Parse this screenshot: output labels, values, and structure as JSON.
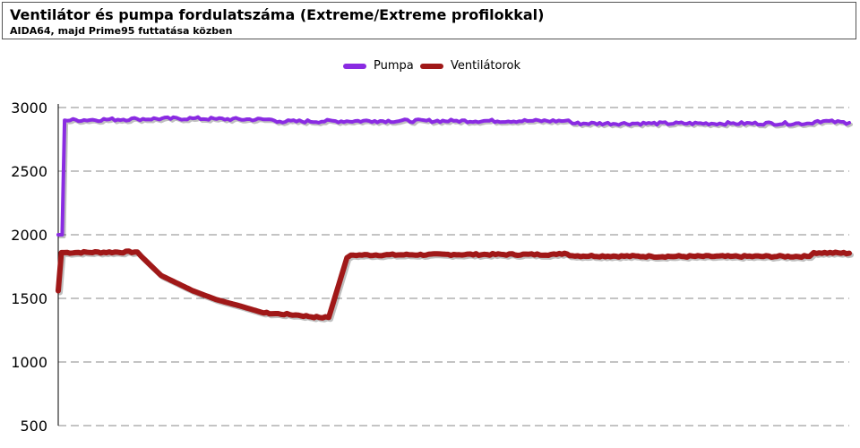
{
  "header": {
    "title": "Ventilátor és pumpa fordulatszáma (Extreme/Extreme profilokkal)",
    "subtitle": "AIDA64, majd Prime95 futtatása közben"
  },
  "colors": {
    "pumpa": "#8a2be2",
    "ventilatorok": "#a01818",
    "grid": "#888888",
    "axis": "#000000"
  },
  "chart_data": {
    "type": "line",
    "title": "Ventilátor és pumpa fordulatszáma (Extreme/Extreme profilokkal)",
    "subtitle": "AIDA64, majd Prime95 futtatása közben",
    "xlabel": "",
    "ylabel": "",
    "ylim": [
      500,
      3000
    ],
    "yticks": [
      "500",
      "1000",
      "1500",
      "2000",
      "2500",
      "3000"
    ],
    "grid": true,
    "legend": "top-center",
    "x_range": [
      0,
      100
    ],
    "series": [
      {
        "name": "Pumpa",
        "color": "#8a2be2",
        "points": [
          [
            0,
            2000
          ],
          [
            0.5,
            2000
          ],
          [
            0.8,
            2900
          ],
          [
            10,
            2910
          ],
          [
            17,
            2915
          ],
          [
            20,
            2910
          ],
          [
            27,
            2905
          ],
          [
            28,
            2890
          ],
          [
            40,
            2895
          ],
          [
            50,
            2895
          ],
          [
            60,
            2895
          ],
          [
            64,
            2895
          ],
          [
            64.5,
            2900
          ],
          [
            65,
            2875
          ],
          [
            75,
            2875
          ],
          [
            85,
            2875
          ],
          [
            95,
            2875
          ],
          [
            96,
            2895
          ],
          [
            100,
            2880
          ]
        ]
      },
      {
        "name": "Ventilátorok",
        "color": "#a01818",
        "points": [
          [
            0,
            1560
          ],
          [
            0.4,
            1860
          ],
          [
            10,
            1865
          ],
          [
            10.5,
            1830
          ],
          [
            13,
            1680
          ],
          [
            17,
            1560
          ],
          [
            20,
            1490
          ],
          [
            23,
            1440
          ],
          [
            26,
            1385
          ],
          [
            30,
            1370
          ],
          [
            33,
            1350
          ],
          [
            34.2,
            1350
          ],
          [
            36.5,
            1820
          ],
          [
            37,
            1840
          ],
          [
            50,
            1845
          ],
          [
            63,
            1845
          ],
          [
            64,
            1855
          ],
          [
            65,
            1835
          ],
          [
            75,
            1830
          ],
          [
            85,
            1830
          ],
          [
            95,
            1830
          ],
          [
            95.5,
            1860
          ],
          [
            100,
            1855
          ]
        ]
      }
    ]
  }
}
